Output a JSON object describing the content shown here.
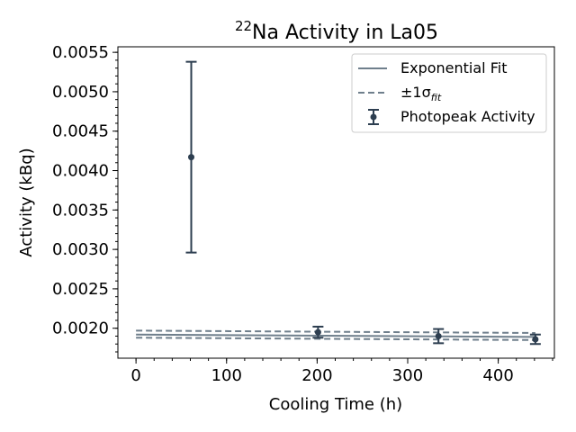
{
  "chart_data": {
    "type": "scatter",
    "title_sup": "22",
    "title_main": "Na Activity in La05",
    "xlabel": "Cooling Time (h)",
    "ylabel": "Activity (kBq)",
    "xlim": [
      -20,
      462
    ],
    "ylim": [
      0.00162,
      0.00557
    ],
    "x_ticks": [
      0,
      100,
      200,
      300,
      400
    ],
    "x_tick_labels": [
      "0",
      "100",
      "200",
      "300",
      "400"
    ],
    "y_ticks": [
      0.002,
      0.0025,
      0.003,
      0.0035,
      0.004,
      0.0045,
      0.005,
      0.0055
    ],
    "y_tick_labels": [
      "0.0020",
      "0.0025",
      "0.0030",
      "0.0035",
      "0.0040",
      "0.0045",
      "0.0050",
      "0.0055"
    ],
    "grid": false,
    "legend_position": "top-right",
    "legend": {
      "fit_label": "Exponential Fit",
      "sigma_prefix": "±1σ",
      "sigma_sub": "fit",
      "points_label": "Photopeak Activity"
    },
    "colors": {
      "points": "#2d3e50",
      "fit": "#6f7f8c",
      "band": "#6f7f8c"
    },
    "series": [
      {
        "name": "Photopeak Activity",
        "kind": "errorbar",
        "x": [
          61,
          201,
          334,
          441
        ],
        "y": [
          0.00417,
          0.00195,
          0.0019,
          0.00186
        ],
        "yerr": [
          0.00121,
          7e-05,
          9e-05,
          6e-05
        ]
      },
      {
        "name": "Exponential Fit",
        "kind": "line",
        "x": [
          0,
          441
        ],
        "y": [
          0.00192,
          0.00189
        ]
      },
      {
        "name": "±1σfit upper",
        "kind": "dashed",
        "x": [
          0,
          441
        ],
        "y": [
          0.00197,
          0.00194
        ]
      },
      {
        "name": "±1σfit lower",
        "kind": "dashed",
        "x": [
          0,
          441
        ],
        "y": [
          0.00188,
          0.00185
        ]
      }
    ]
  }
}
